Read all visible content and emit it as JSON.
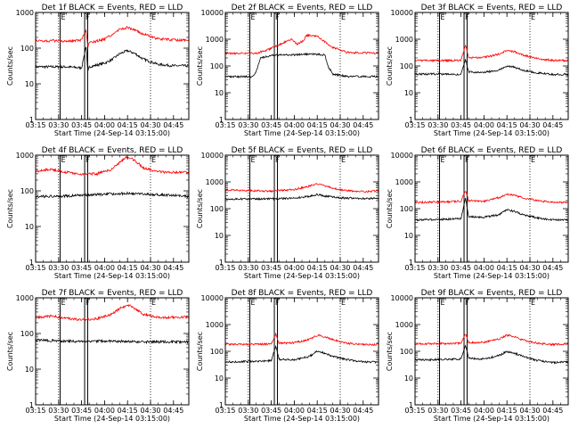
{
  "figure": {
    "xlabel": "Start Time (24-Sep-14 03:15:00)",
    "ylabel": "Counts/sec",
    "x_ticks": [
      "03:15",
      "03:30",
      "03:45",
      "04:00",
      "04:15",
      "04:30",
      "04:45"
    ],
    "x_dotted_times": [
      "03:30",
      "04:30"
    ],
    "colors": {
      "events": "#000000",
      "lld": "#ff0000"
    }
  },
  "chart_data": [
    {
      "type": "line",
      "title": "Det 1f BLACK = Events, RED = LLD",
      "flag_letters": [
        "E",
        "F",
        "E"
      ],
      "xlim": [
        "03:15",
        "04:55"
      ],
      "ylim": [
        1,
        1000
      ],
      "yscale": "log",
      "y_tick_labels": [
        "1",
        "10",
        "100",
        "1000"
      ],
      "markers": [
        "03:31",
        "03:47",
        "03:49",
        "04:30"
      ],
      "series": [
        {
          "color": "#000000",
          "x": [
            "03:15",
            "03:35",
            "03:45",
            "03:48",
            "03:49",
            "03:50",
            "03:53",
            "04:00",
            "04:05",
            "04:10",
            "04:15",
            "04:20",
            "04:25",
            "04:35",
            "04:45",
            "04:55"
          ],
          "y": [
            30,
            30,
            28,
            120,
            20,
            30,
            32,
            38,
            48,
            70,
            85,
            70,
            50,
            35,
            32,
            32
          ]
        },
        {
          "color": "#ff0000",
          "x": [
            "03:15",
            "03:35",
            "03:45",
            "03:48",
            "03:49",
            "03:50",
            "03:53",
            "04:00",
            "04:05",
            "04:10",
            "04:15",
            "04:20",
            "04:25",
            "04:35",
            "04:45",
            "04:55"
          ],
          "y": [
            160,
            160,
            165,
            330,
            110,
            140,
            150,
            180,
            240,
            340,
            380,
            320,
            250,
            180,
            170,
            170
          ]
        }
      ]
    },
    {
      "type": "line",
      "title": "Det 2f BLACK = Events, RED = LLD",
      "flag_letters": [
        "E",
        "F",
        "E"
      ],
      "xlim": [
        "03:15",
        "04:55"
      ],
      "ylim": [
        1,
        10000
      ],
      "yscale": "log",
      "y_tick_labels": [
        "1",
        "10",
        "100",
        "1000",
        "10000"
      ],
      "markers": [
        "03:31",
        "03:47",
        "03:49",
        "04:30"
      ],
      "series": [
        {
          "color": "#000000",
          "x": [
            "03:15",
            "03:33",
            "03:35",
            "03:38",
            "03:45",
            "04:00",
            "04:10",
            "04:15",
            "04:20",
            "04:22",
            "04:25",
            "04:35",
            "04:55"
          ],
          "y": [
            40,
            40,
            60,
            200,
            250,
            260,
            280,
            270,
            260,
            100,
            50,
            40,
            40
          ]
        },
        {
          "color": "#ff0000",
          "x": [
            "03:15",
            "03:35",
            "03:40",
            "03:45",
            "03:48",
            "03:52",
            "03:58",
            "04:02",
            "04:06",
            "04:08",
            "04:15",
            "04:20",
            "04:25",
            "04:35",
            "04:55"
          ],
          "y": [
            300,
            300,
            350,
            450,
            550,
            700,
            1000,
            650,
            900,
            1400,
            1300,
            800,
            500,
            320,
            300
          ]
        }
      ]
    },
    {
      "type": "line",
      "title": "Det 3f BLACK = Events, RED = LLD",
      "flag_letters": [
        "E",
        "F",
        "E"
      ],
      "xlim": [
        "03:15",
        "04:55"
      ],
      "ylim": [
        1,
        10000
      ],
      "yscale": "log",
      "y_tick_labels": [
        "1",
        "10",
        "100",
        "1000",
        "10000"
      ],
      "markers": [
        "03:31",
        "03:47",
        "03:49",
        "04:30"
      ],
      "series": [
        {
          "color": "#000000",
          "x": [
            "03:15",
            "03:35",
            "03:45",
            "03:48",
            "03:50",
            "04:00",
            "04:10",
            "04:15",
            "04:20",
            "04:25",
            "04:35",
            "04:45",
            "04:55"
          ],
          "y": [
            50,
            50,
            48,
            180,
            60,
            58,
            70,
            100,
            90,
            70,
            55,
            48,
            48
          ]
        },
        {
          "color": "#ff0000",
          "x": [
            "03:15",
            "03:35",
            "03:45",
            "03:48",
            "03:50",
            "04:00",
            "04:10",
            "04:15",
            "04:20",
            "04:25",
            "04:35",
            "04:45",
            "04:55"
          ],
          "y": [
            160,
            160,
            165,
            650,
            200,
            210,
            280,
            380,
            340,
            260,
            190,
            160,
            160
          ]
        }
      ]
    },
    {
      "type": "line",
      "title": "Det 4f BLACK = Events, RED = LLD",
      "flag_letters": [
        "E",
        "F",
        "E"
      ],
      "xlim": [
        "03:15",
        "04:55"
      ],
      "ylim": [
        1,
        1000
      ],
      "yscale": "log",
      "y_tick_labels": [
        "1",
        "10",
        "100",
        "1000"
      ],
      "markers": [
        "03:31",
        "03:47",
        "03:49",
        "04:30"
      ],
      "series": [
        {
          "color": "#000000",
          "x": [
            "03:15",
            "03:30",
            "03:45",
            "04:00",
            "04:15",
            "04:30",
            "04:45",
            "04:55"
          ],
          "y": [
            70,
            70,
            75,
            80,
            85,
            80,
            75,
            70
          ]
        },
        {
          "color": "#ff0000",
          "x": [
            "03:15",
            "03:25",
            "03:35",
            "03:45",
            "03:55",
            "04:05",
            "04:10",
            "04:15",
            "04:20",
            "04:25",
            "04:35",
            "04:45",
            "04:55"
          ],
          "y": [
            350,
            400,
            330,
            290,
            300,
            400,
            650,
            900,
            700,
            450,
            340,
            330,
            330
          ]
        }
      ]
    },
    {
      "type": "line",
      "title": "Det 5f BLACK = Events, RED = LLD",
      "flag_letters": [
        "E",
        "F",
        "E"
      ],
      "xlim": [
        "03:15",
        "04:55"
      ],
      "ylim": [
        1,
        10000
      ],
      "yscale": "log",
      "y_tick_labels": [
        "1",
        "10",
        "100",
        "1000",
        "10000"
      ],
      "markers": [
        "03:31",
        "03:47",
        "03:49",
        "04:30"
      ],
      "series": [
        {
          "color": "#000000",
          "x": [
            "03:15",
            "03:45",
            "04:00",
            "04:10",
            "04:15",
            "04:20",
            "04:30",
            "04:55"
          ],
          "y": [
            230,
            230,
            250,
            290,
            340,
            300,
            250,
            240
          ]
        },
        {
          "color": "#ff0000",
          "x": [
            "03:15",
            "03:30",
            "03:45",
            "04:00",
            "04:10",
            "04:15",
            "04:20",
            "04:30",
            "04:45",
            "04:55"
          ],
          "y": [
            500,
            470,
            450,
            520,
            700,
            850,
            700,
            500,
            430,
            450
          ]
        }
      ]
    },
    {
      "type": "line",
      "title": "Det 6f BLACK = Events, RED = LLD",
      "flag_letters": [
        "E",
        "F",
        "E"
      ],
      "xlim": [
        "03:15",
        "04:55"
      ],
      "ylim": [
        1,
        10000
      ],
      "yscale": "log",
      "y_tick_labels": [
        "1",
        "10",
        "100",
        "1000",
        "10000"
      ],
      "markers": [
        "03:31",
        "03:47",
        "03:49",
        "04:30"
      ],
      "series": [
        {
          "color": "#000000",
          "x": [
            "03:15",
            "03:35",
            "03:45",
            "03:48",
            "03:50",
            "04:00",
            "04:10",
            "04:15",
            "04:20",
            "04:25",
            "04:35",
            "04:45",
            "04:55"
          ],
          "y": [
            38,
            40,
            42,
            250,
            50,
            48,
            60,
            90,
            80,
            60,
            45,
            38,
            38
          ]
        },
        {
          "color": "#ff0000",
          "x": [
            "03:15",
            "03:35",
            "03:45",
            "03:48",
            "03:50",
            "04:00",
            "04:10",
            "04:15",
            "04:20",
            "04:25",
            "04:35",
            "04:45",
            "04:55"
          ],
          "y": [
            170,
            180,
            190,
            480,
            200,
            190,
            260,
            350,
            320,
            260,
            200,
            170,
            170
          ]
        }
      ]
    },
    {
      "type": "line",
      "title": "Det 7f BLACK = Events, RED = LLD",
      "flag_letters": [
        "E",
        "F",
        "E"
      ],
      "xlim": [
        "03:15",
        "04:55"
      ],
      "ylim": [
        1,
        1000
      ],
      "yscale": "log",
      "y_tick_labels": [
        "1",
        "10",
        "100",
        "1000"
      ],
      "markers": [
        "03:31",
        "03:47",
        "03:49",
        "04:30"
      ],
      "series": [
        {
          "color": "#000000",
          "x": [
            "03:15",
            "03:30",
            "03:45",
            "04:00",
            "04:15",
            "04:30",
            "04:45",
            "04:55"
          ],
          "y": [
            65,
            62,
            60,
            62,
            60,
            58,
            58,
            58
          ]
        },
        {
          "color": "#ff0000",
          "x": [
            "03:15",
            "03:25",
            "03:35",
            "03:45",
            "03:55",
            "04:05",
            "04:10",
            "04:15",
            "04:20",
            "04:25",
            "04:35",
            "04:45",
            "04:55"
          ],
          "y": [
            280,
            310,
            270,
            240,
            260,
            350,
            500,
            650,
            500,
            350,
            280,
            280,
            290
          ]
        }
      ]
    },
    {
      "type": "line",
      "title": "Det 8f BLACK = Events, RED = LLD",
      "flag_letters": [
        "E",
        "F",
        "E"
      ],
      "xlim": [
        "03:15",
        "04:55"
      ],
      "ylim": [
        1,
        10000
      ],
      "yscale": "log",
      "y_tick_labels": [
        "1",
        "10",
        "100",
        "1000",
        "10000"
      ],
      "markers": [
        "03:31",
        "03:47",
        "03:49",
        "04:30"
      ],
      "series": [
        {
          "color": "#000000",
          "x": [
            "03:15",
            "03:35",
            "03:45",
            "03:48",
            "03:50",
            "04:00",
            "04:10",
            "04:15",
            "04:20",
            "04:25",
            "04:35",
            "04:45",
            "04:55"
          ],
          "y": [
            40,
            42,
            45,
            160,
            50,
            48,
            65,
            100,
            85,
            65,
            48,
            40,
            40
          ]
        },
        {
          "color": "#ff0000",
          "x": [
            "03:15",
            "03:35",
            "03:45",
            "03:48",
            "03:50",
            "04:00",
            "04:10",
            "04:15",
            "04:20",
            "04:25",
            "04:35",
            "04:45",
            "04:55"
          ],
          "y": [
            180,
            185,
            190,
            450,
            200,
            210,
            280,
            400,
            350,
            270,
            200,
            180,
            180
          ]
        }
      ]
    },
    {
      "type": "line",
      "title": "Det 9f BLACK = Events, RED = LLD",
      "flag_letters": [
        "E",
        "F",
        "E"
      ],
      "xlim": [
        "03:15",
        "04:55"
      ],
      "ylim": [
        1,
        10000
      ],
      "yscale": "log",
      "y_tick_labels": [
        "1",
        "10",
        "100",
        "1000",
        "10000"
      ],
      "markers": [
        "03:31",
        "03:47",
        "03:49",
        "04:30"
      ],
      "series": [
        {
          "color": "#000000",
          "x": [
            "03:15",
            "03:35",
            "03:45",
            "03:48",
            "03:50",
            "04:00",
            "04:10",
            "04:15",
            "04:20",
            "04:25",
            "04:35",
            "04:45",
            "04:55"
          ],
          "y": [
            48,
            50,
            52,
            160,
            55,
            52,
            70,
            100,
            85,
            65,
            45,
            38,
            40
          ]
        },
        {
          "color": "#ff0000",
          "x": [
            "03:15",
            "03:35",
            "03:45",
            "03:48",
            "03:50",
            "04:00",
            "04:10",
            "04:15",
            "04:20",
            "04:25",
            "04:35",
            "04:45",
            "04:55"
          ],
          "y": [
            190,
            195,
            200,
            450,
            210,
            220,
            290,
            400,
            350,
            270,
            200,
            180,
            190
          ]
        }
      ]
    }
  ]
}
